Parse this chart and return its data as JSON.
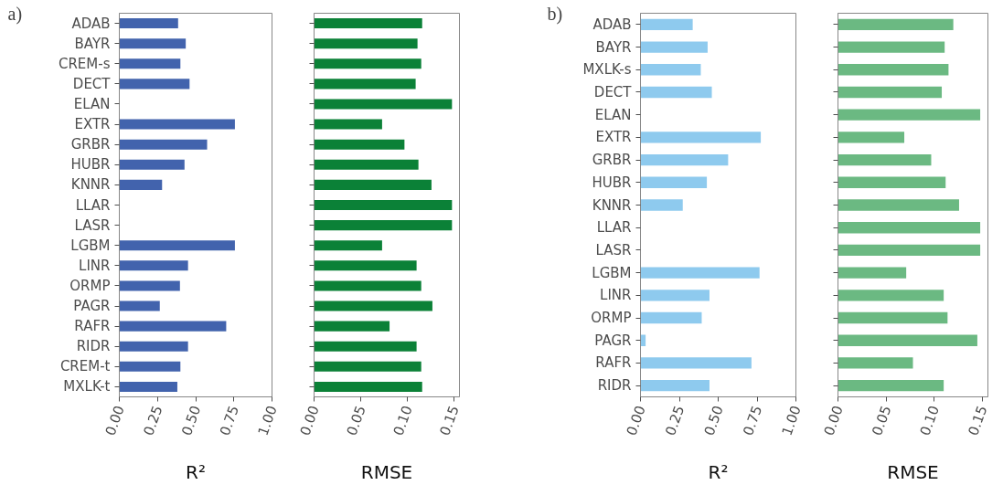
{
  "chart_data": [
    {
      "type": "bar",
      "orientation": "horizontal",
      "annotations": [
        "a)"
      ],
      "xlabel": "R²",
      "grid": false,
      "color": "#4263ad",
      "categories": [
        "ADAB",
        "BAYR",
        "CREM-s",
        "DECT",
        "ELAN",
        "EXTR",
        "GRBR",
        "HUBR",
        "KNNR",
        "LLAR",
        "LASR",
        "LGBM",
        "LINR",
        "ORMP",
        "PAGR",
        "RAFR",
        "RIDR",
        "CREM-t",
        "MXLK-t"
      ],
      "values": [
        0.385,
        0.435,
        0.4,
        0.46,
        null,
        0.757,
        0.575,
        0.427,
        0.28,
        null,
        null,
        0.757,
        0.45,
        0.397,
        0.265,
        0.7,
        0.45,
        0.4,
        0.38
      ],
      "xlim": [
        0,
        1
      ],
      "xticks": [
        {
          "value": 0,
          "label": "0.00"
        },
        {
          "value": 0.25,
          "label": "0.25"
        },
        {
          "value": 0.5,
          "label": "0.50"
        },
        {
          "value": 0.75,
          "label": "0.75"
        },
        {
          "value": 1,
          "label": "1.00"
        }
      ]
    },
    {
      "type": "bar",
      "orientation": "horizontal",
      "xlabel": "RMSE",
      "grid": false,
      "color": "#0b8137",
      "tick_labels": "x",
      "categories": [
        null,
        null,
        null,
        null,
        null,
        null,
        null,
        null,
        null,
        null,
        null,
        null,
        null,
        null,
        null,
        null,
        null,
        null,
        null
      ],
      "values": [
        0.116,
        0.111,
        0.115,
        0.109,
        0.148,
        0.073,
        0.097,
        0.112,
        0.126,
        0.148,
        0.148,
        0.073,
        0.11,
        0.115,
        0.127,
        0.081,
        0.11,
        0.115,
        0.116
      ],
      "xlim": [
        0,
        0.156
      ],
      "xticks": [
        {
          "value": 0,
          "label": "0.00"
        },
        {
          "value": 0.05,
          "label": "0.05"
        },
        {
          "value": 0.1,
          "label": "0.10"
        },
        {
          "value": 0.15,
          "label": "0.15"
        }
      ]
    },
    {
      "type": "bar",
      "orientation": "horizontal",
      "annotations": [
        "b)"
      ],
      "xlabel": "R²",
      "grid": false,
      "color": "#8ecaee",
      "categories": [
        "ADAB",
        "BAYR",
        "MXLK-s",
        "DECT",
        "ELAN",
        "EXTR",
        "GRBR",
        "HUBR",
        "KNNR",
        "LLAR",
        "LASR",
        "LGBM",
        "LINR",
        "ORMP",
        "PAGR",
        "RAFR",
        "RIDR"
      ],
      "values": [
        0.336,
        0.432,
        0.388,
        0.459,
        null,
        0.774,
        0.564,
        0.427,
        0.272,
        null,
        null,
        0.766,
        0.444,
        0.394,
        0.033,
        0.714,
        0.444
      ],
      "xlim": [
        0,
        1
      ],
      "xticks": [
        {
          "value": 0,
          "label": "0.00"
        },
        {
          "value": 0.25,
          "label": "0.25"
        },
        {
          "value": 0.5,
          "label": "0.50"
        },
        {
          "value": 0.75,
          "label": "0.75"
        },
        {
          "value": 1,
          "label": "1.00"
        }
      ]
    },
    {
      "type": "bar",
      "orientation": "horizontal",
      "xlabel": "RMSE",
      "grid": false,
      "color": "#6bb982",
      "tick_labels": "x",
      "categories": [
        null,
        null,
        null,
        null,
        null,
        null,
        null,
        null,
        null,
        null,
        null,
        null,
        null,
        null,
        null,
        null,
        null
      ],
      "values": [
        0.12,
        0.111,
        0.115,
        0.108,
        0.148,
        0.069,
        0.097,
        0.112,
        0.126,
        0.148,
        0.148,
        0.071,
        0.11,
        0.114,
        0.145,
        0.078,
        0.11
      ],
      "xlim": [
        0,
        0.156
      ],
      "xticks": [
        {
          "value": 0,
          "label": "0.00"
        },
        {
          "value": 0.05,
          "label": "0.05"
        },
        {
          "value": 0.1,
          "label": "0.10"
        },
        {
          "value": 0.15,
          "label": "0.15"
        }
      ]
    }
  ]
}
